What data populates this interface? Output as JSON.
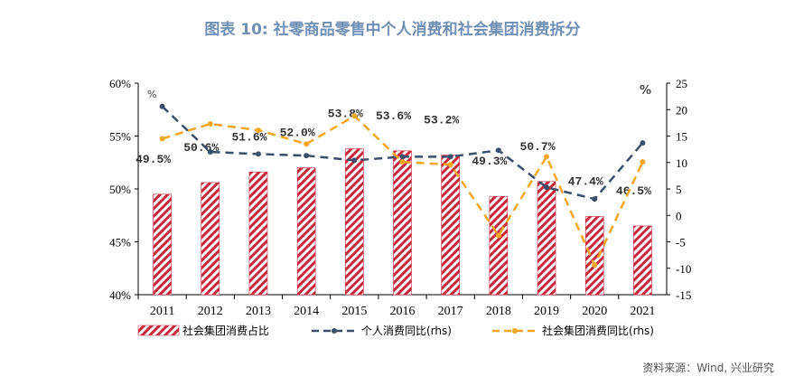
{
  "title": "图表 10: 社零商品零售中个人消费和社会集团消费拆分",
  "source": "资料来源：Wind, 兴业研究",
  "colors": {
    "bar": "#c8283c",
    "personal": "#3b4f6b",
    "group": "#f5a623"
  },
  "chart_data": {
    "type": "bar+line",
    "categories": [
      "2011",
      "2012",
      "2013",
      "2014",
      "2015",
      "2016",
      "2017",
      "2018",
      "2019",
      "2020",
      "2021"
    ],
    "left_axis": {
      "unit_label": "%",
      "ylim": [
        40,
        60
      ],
      "ticks": [
        "40%",
        "45%",
        "50%",
        "55%",
        "60%"
      ]
    },
    "right_axis": {
      "unit_label": "%",
      "ylim": [
        -15,
        25
      ],
      "ticks": [
        "-15",
        "-10",
        "-5",
        "0",
        "5",
        "10",
        "15",
        "20",
        "25"
      ]
    },
    "series": [
      {
        "name": "社会集团消费占比",
        "type": "bar",
        "axis": "left",
        "values": [
          49.5,
          50.6,
          51.6,
          52.0,
          53.8,
          53.6,
          53.2,
          49.3,
          50.7,
          47.4,
          46.5
        ],
        "labels": [
          "49.5%",
          "50.6%",
          "51.6%",
          "52.0%",
          "53.8%",
          "53.6%",
          "53.2%",
          "49.3%",
          "50.7%",
          "47.4%",
          "46.5%"
        ]
      },
      {
        "name": "个人消费同比(rhs)",
        "type": "line",
        "axis": "right",
        "values": [
          20.6,
          12.0,
          11.6,
          11.3,
          10.4,
          11.1,
          11.1,
          12.3,
          5.3,
          3.1,
          13.7
        ]
      },
      {
        "name": "社会集团消费同比(rhs)",
        "type": "line",
        "axis": "right",
        "values": [
          14.5,
          17.3,
          16.1,
          13.5,
          18.8,
          10.1,
          9.6,
          -3.8,
          11.1,
          -9.4,
          10.1
        ]
      }
    ],
    "legend": "bottom"
  }
}
